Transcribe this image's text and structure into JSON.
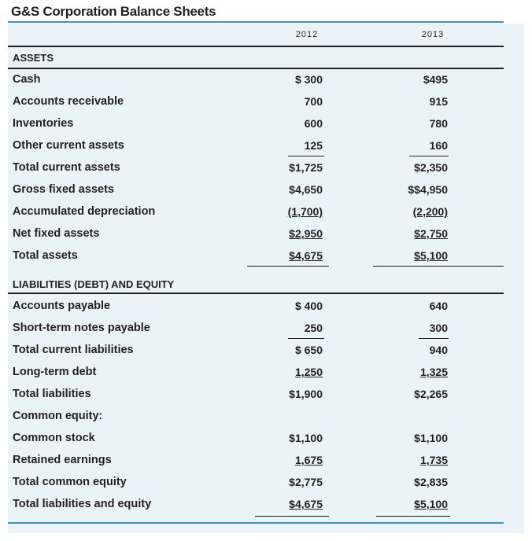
{
  "title": "G&S Corporation Balance Sheets",
  "years": [
    "2012",
    "2013"
  ],
  "sections": {
    "assets": "ASSETS",
    "liabilities": "LIABILITIES (DEBT) AND EQUITY"
  },
  "assets": [
    {
      "label": "Cash",
      "v2012": "$ 300",
      "v2013": "$495"
    },
    {
      "label": "Accounts receivable",
      "v2012": "700",
      "v2013": "915"
    },
    {
      "label": "Inventories",
      "v2012": "600",
      "v2013": "780"
    },
    {
      "label": "Other current assets",
      "v2012": "125",
      "v2013": "160"
    },
    {
      "label": "Total current assets",
      "v2012": "$1,725",
      "v2013": "$2,350"
    },
    {
      "label": "Gross fixed assets",
      "v2012": "$4,650",
      "v2013": "$$4,950"
    },
    {
      "label": "Accumulated depreciation",
      "v2012": "(1,700)",
      "v2013": "(2,200)"
    },
    {
      "label": "Net fixed assets",
      "v2012": "$2,950",
      "v2013": "$2,750"
    },
    {
      "label": "Total assets",
      "v2012": "$4,675",
      "v2013": "$5,100"
    }
  ],
  "liabilities": [
    {
      "label": "Accounts payable",
      "v2012": "$ 400",
      "v2013": "640"
    },
    {
      "label": "Short-term notes payable",
      "v2012": "250",
      "v2013": "300"
    },
    {
      "label": "Total current liabilities",
      "v2012": "$ 650",
      "v2013": "940"
    },
    {
      "label": "Long-term debt",
      "v2012": "1,250",
      "v2013": "1,325"
    },
    {
      "label": "Total liabilities",
      "v2012": "$1,900",
      "v2013": "$2,265"
    },
    {
      "label": "Common equity:",
      "v2012": "",
      "v2013": ""
    },
    {
      "label": "Common stock",
      "v2012": "$1,100",
      "v2013": "$1,100"
    },
    {
      "label": "Retained earnings",
      "v2012": "1,675",
      "v2013": "1,735"
    },
    {
      "label": "Total common equity",
      "v2012": "$2,775",
      "v2013": "$2,835"
    },
    {
      "label": "Total liabilities and equity",
      "v2012": "$4,675",
      "v2013": "$5,100"
    }
  ]
}
